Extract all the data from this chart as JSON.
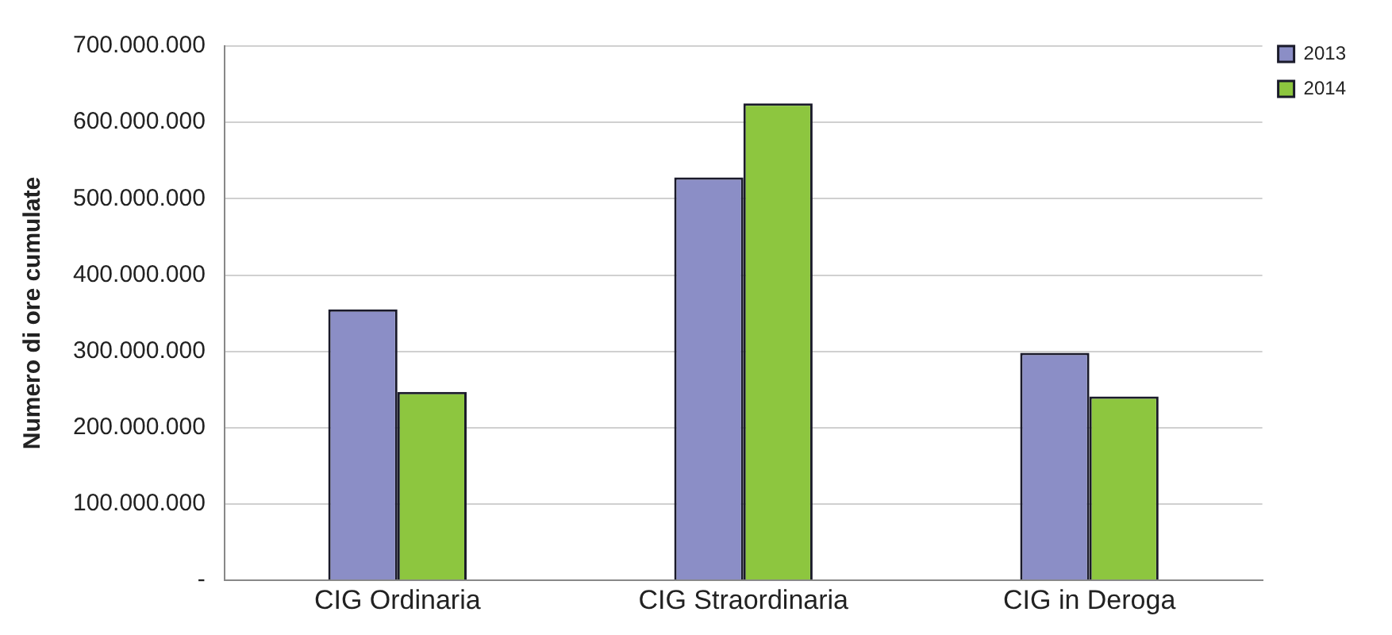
{
  "chart_data": {
    "type": "bar",
    "ylabel": "Numero di ore cumulate",
    "categories": [
      "CIG Ordinaria",
      "CIG Straordinaria",
      "CIG in Deroga"
    ],
    "series": [
      {
        "name": "2013",
        "color": "#8b8ec6",
        "values": [
          355000000,
          528000000,
          298000000
        ]
      },
      {
        "name": "2014",
        "color": "#8dc63f",
        "values": [
          247000000,
          625000000,
          241000000
        ]
      }
    ],
    "ylim": [
      0,
      700000000
    ],
    "yticks": [
      {
        "value": 0,
        "label": "-"
      },
      {
        "value": 100000000,
        "label": "100.000.000"
      },
      {
        "value": 200000000,
        "label": "200.000.000"
      },
      {
        "value": 300000000,
        "label": "300.000.000"
      },
      {
        "value": 400000000,
        "label": "400.000.000"
      },
      {
        "value": 500000000,
        "label": "500.000.000"
      },
      {
        "value": 600000000,
        "label": "600.000.000"
      },
      {
        "value": 700000000,
        "label": "700.000.000"
      }
    ],
    "grid": "y",
    "legend": "top right"
  }
}
